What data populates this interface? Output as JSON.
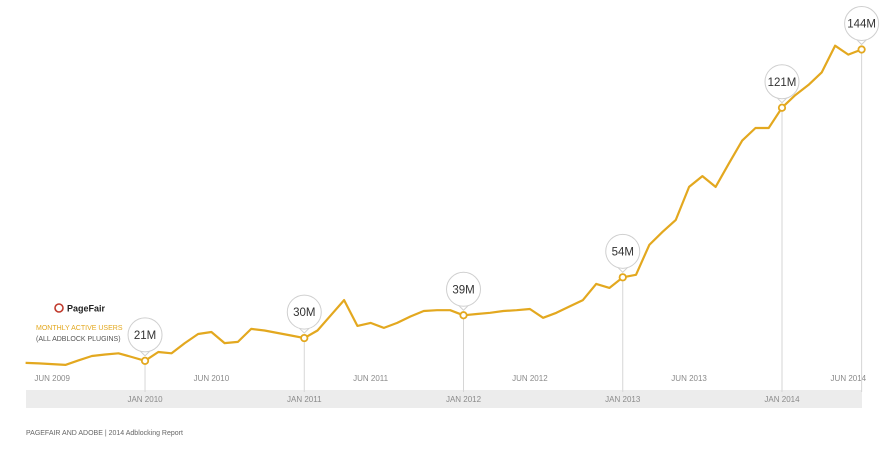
{
  "chart_data": {
    "type": "line",
    "brand": "PageFair",
    "subtitle": "(ALL ADBLOCK PLUGINS)",
    "footer": "PAGEFAIR AND ADOBE | 2014 Adblocking Report",
    "categories": [
      null,
      null,
      "JUN 2009",
      null,
      null,
      null,
      null,
      null,
      null,
      "JAN 2010",
      null,
      null,
      null,
      null,
      "JUN 2010",
      null,
      null,
      null,
      null,
      null,
      null,
      "JAN 2011",
      null,
      null,
      null,
      null,
      "JUN 2011",
      null,
      null,
      null,
      null,
      null,
      null,
      "JAN 2012",
      null,
      null,
      null,
      null,
      "JUN 2012",
      null,
      null,
      null,
      null,
      null,
      null,
      "JAN 2013",
      null,
      null,
      null,
      null,
      "JUN 2013",
      null,
      null,
      null,
      null,
      null,
      null,
      "JAN 2014",
      null,
      null,
      null,
      null,
      "JUN 2014",
      null
    ],
    "series": [
      {
        "name": "MONTHLY ACTIVE USERS",
        "color": "#e3a81f",
        "values": [
          20.2,
          20,
          19.7,
          19.4,
          21.2,
          22.9,
          23.5,
          24,
          22.5,
          21,
          24.5,
          24,
          28,
          31.6,
          32.4,
          28,
          28.5,
          33.6,
          33,
          32,
          31,
          30,
          33,
          39,
          45,
          34.8,
          36,
          34,
          36,
          38.5,
          40.7,
          41,
          41,
          39,
          39.5,
          40,
          40.7,
          41,
          41.5,
          38,
          40,
          42.5,
          45,
          51.4,
          49.8,
          54,
          55,
          66.8,
          72,
          76.7,
          89.7,
          94,
          89.7,
          99,
          108,
          113,
          113,
          121,
          126,
          130,
          135,
          145.5,
          142,
          144
        ],
        "value_labels": [
          null,
          null,
          null,
          null,
          null,
          null,
          null,
          null,
          null,
          "21M",
          null,
          null,
          null,
          null,
          null,
          null,
          null,
          null,
          null,
          null,
          null,
          "30M",
          null,
          null,
          null,
          null,
          null,
          null,
          null,
          null,
          null,
          null,
          null,
          "39M",
          null,
          null,
          null,
          null,
          null,
          null,
          null,
          null,
          null,
          null,
          null,
          "54M",
          null,
          null,
          null,
          null,
          null,
          null,
          null,
          null,
          null,
          null,
          null,
          "121M",
          null,
          null,
          null,
          null,
          null,
          "144M"
        ]
      }
    ],
    "ylim": [
      0,
      160
    ]
  }
}
